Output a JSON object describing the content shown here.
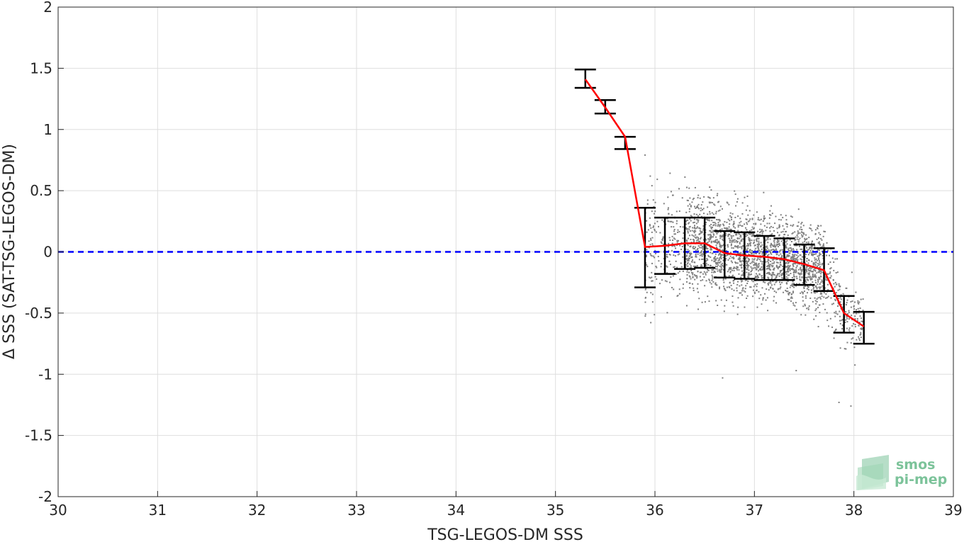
{
  "chart_data": {
    "type": "scatter",
    "xlabel": "TSG-LEGOS-DM SSS",
    "ylabel": "Δ SSS (SAT-TSG-LEGOS-DM)",
    "xlim": [
      30,
      39
    ],
    "ylim": [
      -2,
      2
    ],
    "x_ticks": [
      "30",
      "31",
      "32",
      "33",
      "34",
      "35",
      "36",
      "37",
      "38",
      "39"
    ],
    "y_ticks": [
      "2",
      "1.5",
      "1",
      "0.5",
      "0",
      "-0.5",
      "-1",
      "-1.5",
      "-2"
    ],
    "grid": true,
    "reference_line": {
      "y": 0,
      "style": "dashed",
      "color": "#0000ff"
    },
    "scatter_cloud": {
      "color": "#808080",
      "x_range": [
        35.9,
        38.1
      ],
      "trend": "negative",
      "outliers": [
        {
          "x": 36.68,
          "y": -1.03
        },
        {
          "x": 37.85,
          "y": -1.23
        },
        {
          "x": 37.97,
          "y": -1.26
        },
        {
          "x": 37.42,
          "y": -0.97
        }
      ]
    },
    "binned": {
      "line_color": "#ff0000",
      "errorbar_color": "#000000",
      "points": [
        {
          "x": 35.3,
          "mean": 1.41,
          "low": 1.34,
          "high": 1.49
        },
        {
          "x": 35.5,
          "mean": 1.18,
          "low": 1.13,
          "high": 1.24
        },
        {
          "x": 35.7,
          "mean": 0.94,
          "low": 0.84,
          "high": 0.94
        },
        {
          "x": 35.9,
          "mean": 0.04,
          "low": -0.29,
          "high": 0.36
        },
        {
          "x": 36.1,
          "mean": 0.05,
          "low": -0.18,
          "high": 0.28
        },
        {
          "x": 36.3,
          "mean": 0.07,
          "low": -0.14,
          "high": 0.28
        },
        {
          "x": 36.5,
          "mean": 0.07,
          "low": -0.13,
          "high": 0.28
        },
        {
          "x": 36.7,
          "mean": -0.01,
          "low": -0.21,
          "high": 0.17
        },
        {
          "x": 36.9,
          "mean": -0.03,
          "low": -0.22,
          "high": 0.16
        },
        {
          "x": 37.1,
          "mean": -0.04,
          "low": -0.23,
          "high": 0.13
        },
        {
          "x": 37.3,
          "mean": -0.06,
          "low": -0.23,
          "high": 0.11
        },
        {
          "x": 37.5,
          "mean": -0.1,
          "low": -0.27,
          "high": 0.06
        },
        {
          "x": 37.7,
          "mean": -0.15,
          "low": -0.32,
          "high": 0.03
        },
        {
          "x": 37.9,
          "mean": -0.5,
          "low": -0.66,
          "high": -0.36
        },
        {
          "x": 38.1,
          "mean": -0.61,
          "low": -0.75,
          "high": -0.49
        }
      ]
    }
  },
  "logo": {
    "line1": "smos",
    "line2": "pi-mep"
  }
}
